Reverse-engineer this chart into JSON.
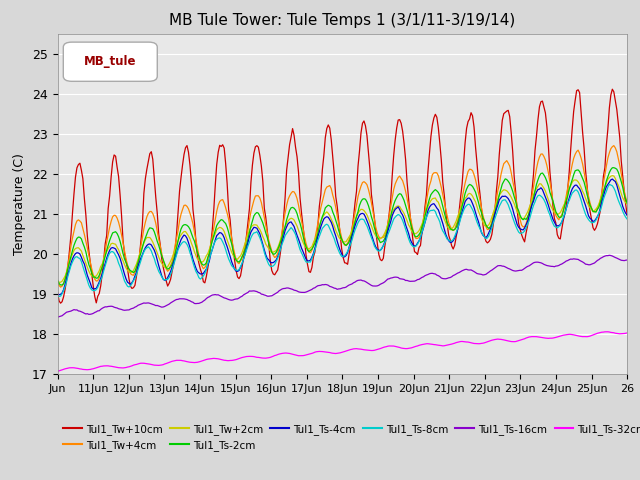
{
  "title": "MB Tule Tower: Tule Temps 1 (3/1/11-3/19/14)",
  "ylabel": "Temperature (C)",
  "ylim": [
    17.0,
    25.5
  ],
  "yticks": [
    17.0,
    18.0,
    19.0,
    20.0,
    21.0,
    22.0,
    23.0,
    24.0,
    25.0
  ],
  "x_labels": [
    "Jun",
    "11Jun",
    "12Jun",
    "13Jun",
    "14Jun",
    "15Jun",
    "16Jun",
    "17Jun",
    "18Jun",
    "19Jun",
    "20Jun",
    "21Jun",
    "22Jun",
    "23Jun",
    "24Jun",
    "25Jun",
    "26"
  ],
  "legend_label": "MB_tule",
  "series_colors": {
    "Tul1_Tw+10cm": "#cc0000",
    "Tul1_Tw+4cm": "#ff8800",
    "Tul1_Tw+2cm": "#cccc00",
    "Tul1_Ts-2cm": "#00cc00",
    "Tul1_Ts-4cm": "#0000cc",
    "Tul1_Ts-8cm": "#00cccc",
    "Tul1_Ts-16cm": "#8800cc",
    "Tul1_Ts-32cm": "#ff00ff"
  },
  "fig_bg": "#d8d8d8",
  "plot_bg": "#e8e8e8"
}
